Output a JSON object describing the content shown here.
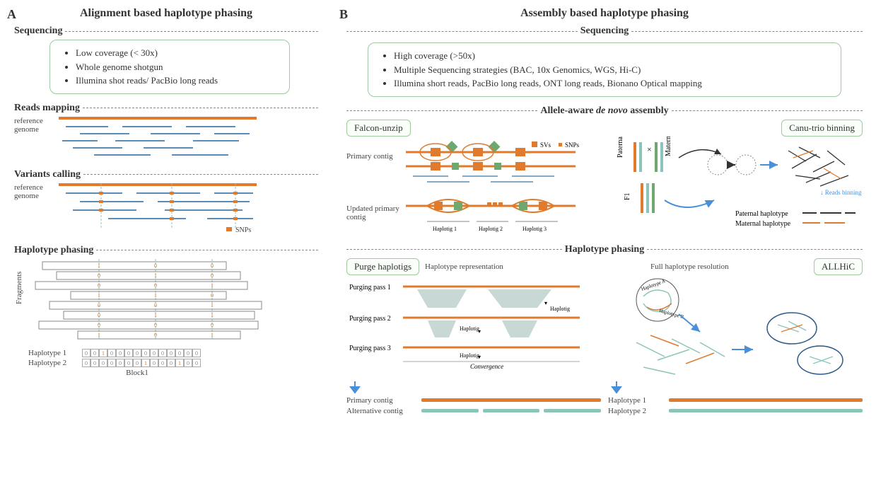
{
  "colors": {
    "orange": "#e07b2e",
    "blue": "#5b8db8",
    "green": "#6fa86f",
    "teal": "#8bc5ba",
    "darkblue": "#2c5a8a",
    "gray": "#888888",
    "box_border": "#9fc99f",
    "arrow_blue": "#4a90d9"
  },
  "panelA": {
    "label": "A",
    "title": "Alignment based haplotype phasing",
    "sequencing": {
      "title": "Sequencing",
      "bullets": [
        "Low coverage (< 30x)",
        "Whole genome shotgun",
        "Illumina shot reads/ PacBio long reads"
      ]
    },
    "reads_mapping": {
      "title": "Reads mapping",
      "ref_label": "reference\ngenome"
    },
    "variants_calling": {
      "title": "Variants calling",
      "ref_label": "reference\ngenome",
      "snps_label": "SNPs"
    },
    "haplotype_phasing": {
      "title": "Haplotype phasing",
      "fragments_label": "Fragments",
      "hap1_label": "Haplotype 1",
      "hap2_label": "Haplotype 2",
      "block_label": "Block1",
      "hap1_seq": [
        "0",
        "0",
        "1",
        "0",
        "0",
        "0",
        "0",
        "0",
        "0",
        "0",
        "0",
        "0",
        "0",
        "0"
      ],
      "hap2_seq": [
        "0",
        "0",
        "0",
        "0",
        "0",
        "0",
        "0",
        "1",
        "0",
        "0",
        "0",
        "1",
        "0",
        "0"
      ]
    }
  },
  "panelB": {
    "label": "B",
    "title": "Assembly based haplotype phasing",
    "sequencing": {
      "title": "Sequencing",
      "bullets": [
        "High coverage (>50x)",
        "Multiple Sequencing strategies (BAC, 10x Genomics, WGS, Hi-C)",
        "Illumina short reads, PacBio long reads, ONT long reads, Bionano Optical mapping"
      ]
    },
    "assembly": {
      "title": "Allele-aware de novo assembly",
      "falcon_label": "Falcon-unzip",
      "canu_label": "Canu-trio binning",
      "primary_contig": "Primary contig",
      "updated_primary": "Updated primary contig",
      "svs_label": "SVs",
      "snps_label": "SNPs",
      "haplotig_labels": [
        "Haplotig 1",
        "Haplotig 2",
        "Haplotig 3"
      ],
      "parent_labels": {
        "paternal": "Paternal",
        "maternal": "Maternal",
        "f1": "F1"
      },
      "paternal_haplotype": "Paternal haplotype",
      "maternal_haplotype": "Maternal haplotype",
      "reads_binning": "Reads binning"
    },
    "phasing": {
      "title": "Haplotype phasing",
      "purge_label": "Purge haplotigs",
      "allhic_label": "ALLHiC",
      "hap_rep": "Haplotype representation",
      "full_hap": "Full haplotype resolution",
      "passes": [
        "Purging pass 1",
        "Purging pass 2",
        "Purging pass 3"
      ],
      "haplotig_small": "Haplotig",
      "convergence": "Convergence",
      "hapA": "Haplotype A",
      "hapB": "Haplotype B",
      "primary_contig": "Primary contig",
      "alternative_contig": "Alternative contig",
      "hap1": "Haplotype 1",
      "hap2": "Haplotype 2"
    }
  }
}
